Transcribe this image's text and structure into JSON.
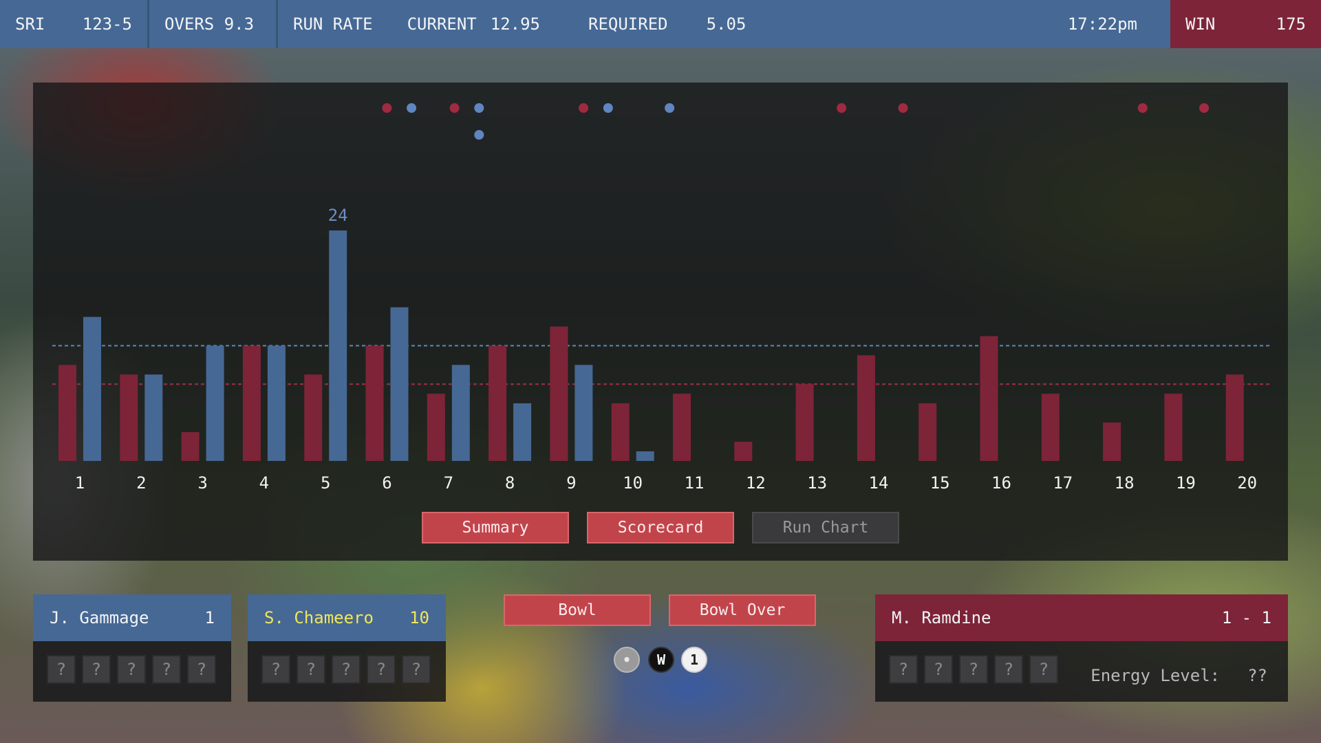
{
  "scoreboard": {
    "team": "SRI",
    "score": "123-5",
    "overs": "OVERS 9.3",
    "run_rate_label": "RUN RATE",
    "current_label": "CURRENT",
    "current_value": "12.95",
    "required_label": "REQUIRED",
    "required_value": "5.05",
    "time": "17:22pm",
    "win_label": "WIN",
    "win_value": "175"
  },
  "tabs": {
    "summary": "Summary",
    "scorecard": "Scorecard",
    "run_chart": "Run Chart"
  },
  "chart_data": {
    "type": "bar",
    "categories": [
      "1",
      "2",
      "3",
      "4",
      "5",
      "6",
      "7",
      "8",
      "9",
      "10",
      "11",
      "12",
      "13",
      "14",
      "15",
      "16",
      "17",
      "18",
      "19",
      "20"
    ],
    "series": [
      {
        "color": "#7d2438",
        "values": [
          10,
          9,
          3,
          12,
          9,
          12,
          7,
          12,
          14,
          6,
          7,
          2,
          8,
          11,
          6,
          13,
          7,
          4,
          7,
          9
        ]
      },
      {
        "color": "#466894",
        "values": [
          15,
          9,
          12,
          12,
          24,
          16,
          10,
          6,
          10,
          1,
          null,
          null,
          null,
          null,
          null,
          null,
          null,
          null,
          null,
          null
        ]
      }
    ],
    "max_label": "24",
    "ylim": [
      0,
      24
    ],
    "reference_lines": [
      {
        "series": 1,
        "value": 12
      },
      {
        "series": 0,
        "value": 8
      }
    ],
    "wickets": [
      {
        "series": 0,
        "over": 6.2
      },
      {
        "series": 1,
        "over": 6.6
      },
      {
        "series": 0,
        "over": 7.3
      },
      {
        "series": 1,
        "over": 7.7
      },
      {
        "series": 1,
        "over": 7.7
      },
      {
        "series": 0,
        "over": 9.4
      },
      {
        "series": 1,
        "over": 9.8
      },
      {
        "series": 1,
        "over": 10.8
      },
      {
        "series": 0,
        "over": 13.6
      },
      {
        "series": 0,
        "over": 14.6
      },
      {
        "series": 0,
        "over": 18.5
      },
      {
        "series": 0,
        "over": 19.5
      }
    ]
  },
  "batsmen": [
    {
      "name": "J. Gammage",
      "runs": "1",
      "name_color": "#f2f4f8"
    },
    {
      "name": "S. Chameero",
      "runs": "10",
      "name_color": "#f0e65a"
    }
  ],
  "bowler": {
    "name": "M. Ramdine",
    "figures": "1 - 1",
    "energy_label": "Energy Level:",
    "energy_value": "??"
  },
  "unknown": "?",
  "actions": {
    "bowl": "Bowl",
    "bowl_over": "Bowl Over"
  },
  "recent_balls": [
    {
      "text": "•",
      "bg": "#9a9a9a",
      "fg": "#e8e8e8"
    },
    {
      "text": "W",
      "bg": "#111111",
      "fg": "#ffffff"
    },
    {
      "text": "1",
      "bg": "#f2f2f2",
      "fg": "#222222"
    }
  ],
  "colors": {
    "blue": "#466894",
    "maroon": "#7d2438",
    "button_red": "#c2444b"
  }
}
